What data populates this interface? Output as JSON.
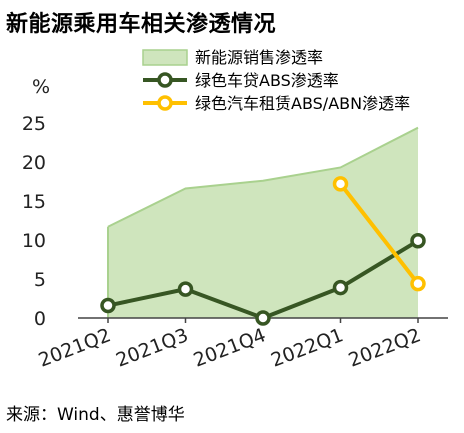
{
  "title": "新能源乘用车相关渗透情况",
  "source": "来源：Wind、惠誉博华",
  "chart_data": {
    "type": "line",
    "title": "新能源乘用车相关渗透情况",
    "categories": [
      "2021Q2",
      "2021Q3",
      "2021Q4",
      "2022Q1",
      "2022Q2"
    ],
    "y_unit": "%",
    "ylim": [
      0,
      25
    ],
    "yticks": [
      0,
      5,
      10,
      15,
      20,
      25
    ],
    "grid": false,
    "legend_position": "top",
    "series": [
      {
        "name": "新能源销售渗透率",
        "kind": "area",
        "values": [
          11.7,
          16.6,
          17.6,
          19.3,
          24.4
        ],
        "color": "#a9d18e"
      },
      {
        "name": "绿色车贷ABS渗透率",
        "kind": "line",
        "values": [
          1.6,
          3.7,
          0.0,
          3.9,
          9.9
        ],
        "color": "#375623"
      },
      {
        "name": "绿色汽车租赁ABS/ABN渗透率",
        "kind": "line",
        "values": [
          null,
          null,
          null,
          17.2,
          4.4
        ],
        "color": "#ffc000"
      }
    ]
  }
}
